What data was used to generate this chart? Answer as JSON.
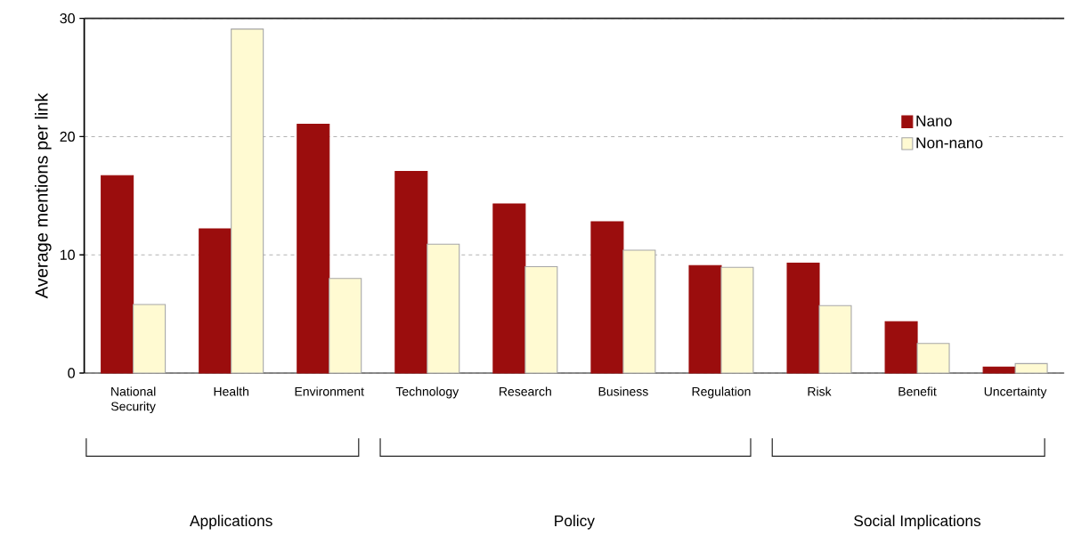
{
  "chart_data": {
    "type": "bar",
    "ylabel": "Average mentions per link",
    "categories": [
      "National Security",
      "Health",
      "Environment",
      "Technology",
      "Research",
      "Business",
      "Regulation",
      "Risk",
      "Benefit",
      "Uncertainty"
    ],
    "series": [
      {
        "name": "Nano",
        "color": "#9b0d0d",
        "values": [
          16.7,
          12.2,
          21.05,
          17.05,
          14.3,
          12.8,
          9.1,
          9.3,
          4.35,
          0.5
        ]
      },
      {
        "name": "Non-nano",
        "color": "#fffad2",
        "values": [
          5.8,
          29.1,
          8.0,
          10.9,
          9.0,
          10.4,
          8.95,
          5.7,
          2.5,
          0.8
        ]
      }
    ],
    "ylim": [
      0,
      30
    ],
    "yticks": [
      0,
      10,
      20,
      30
    ],
    "grid": "y",
    "legend": "top right",
    "annotations": [
      "Applications",
      "Policy",
      "Social Implications"
    ]
  }
}
